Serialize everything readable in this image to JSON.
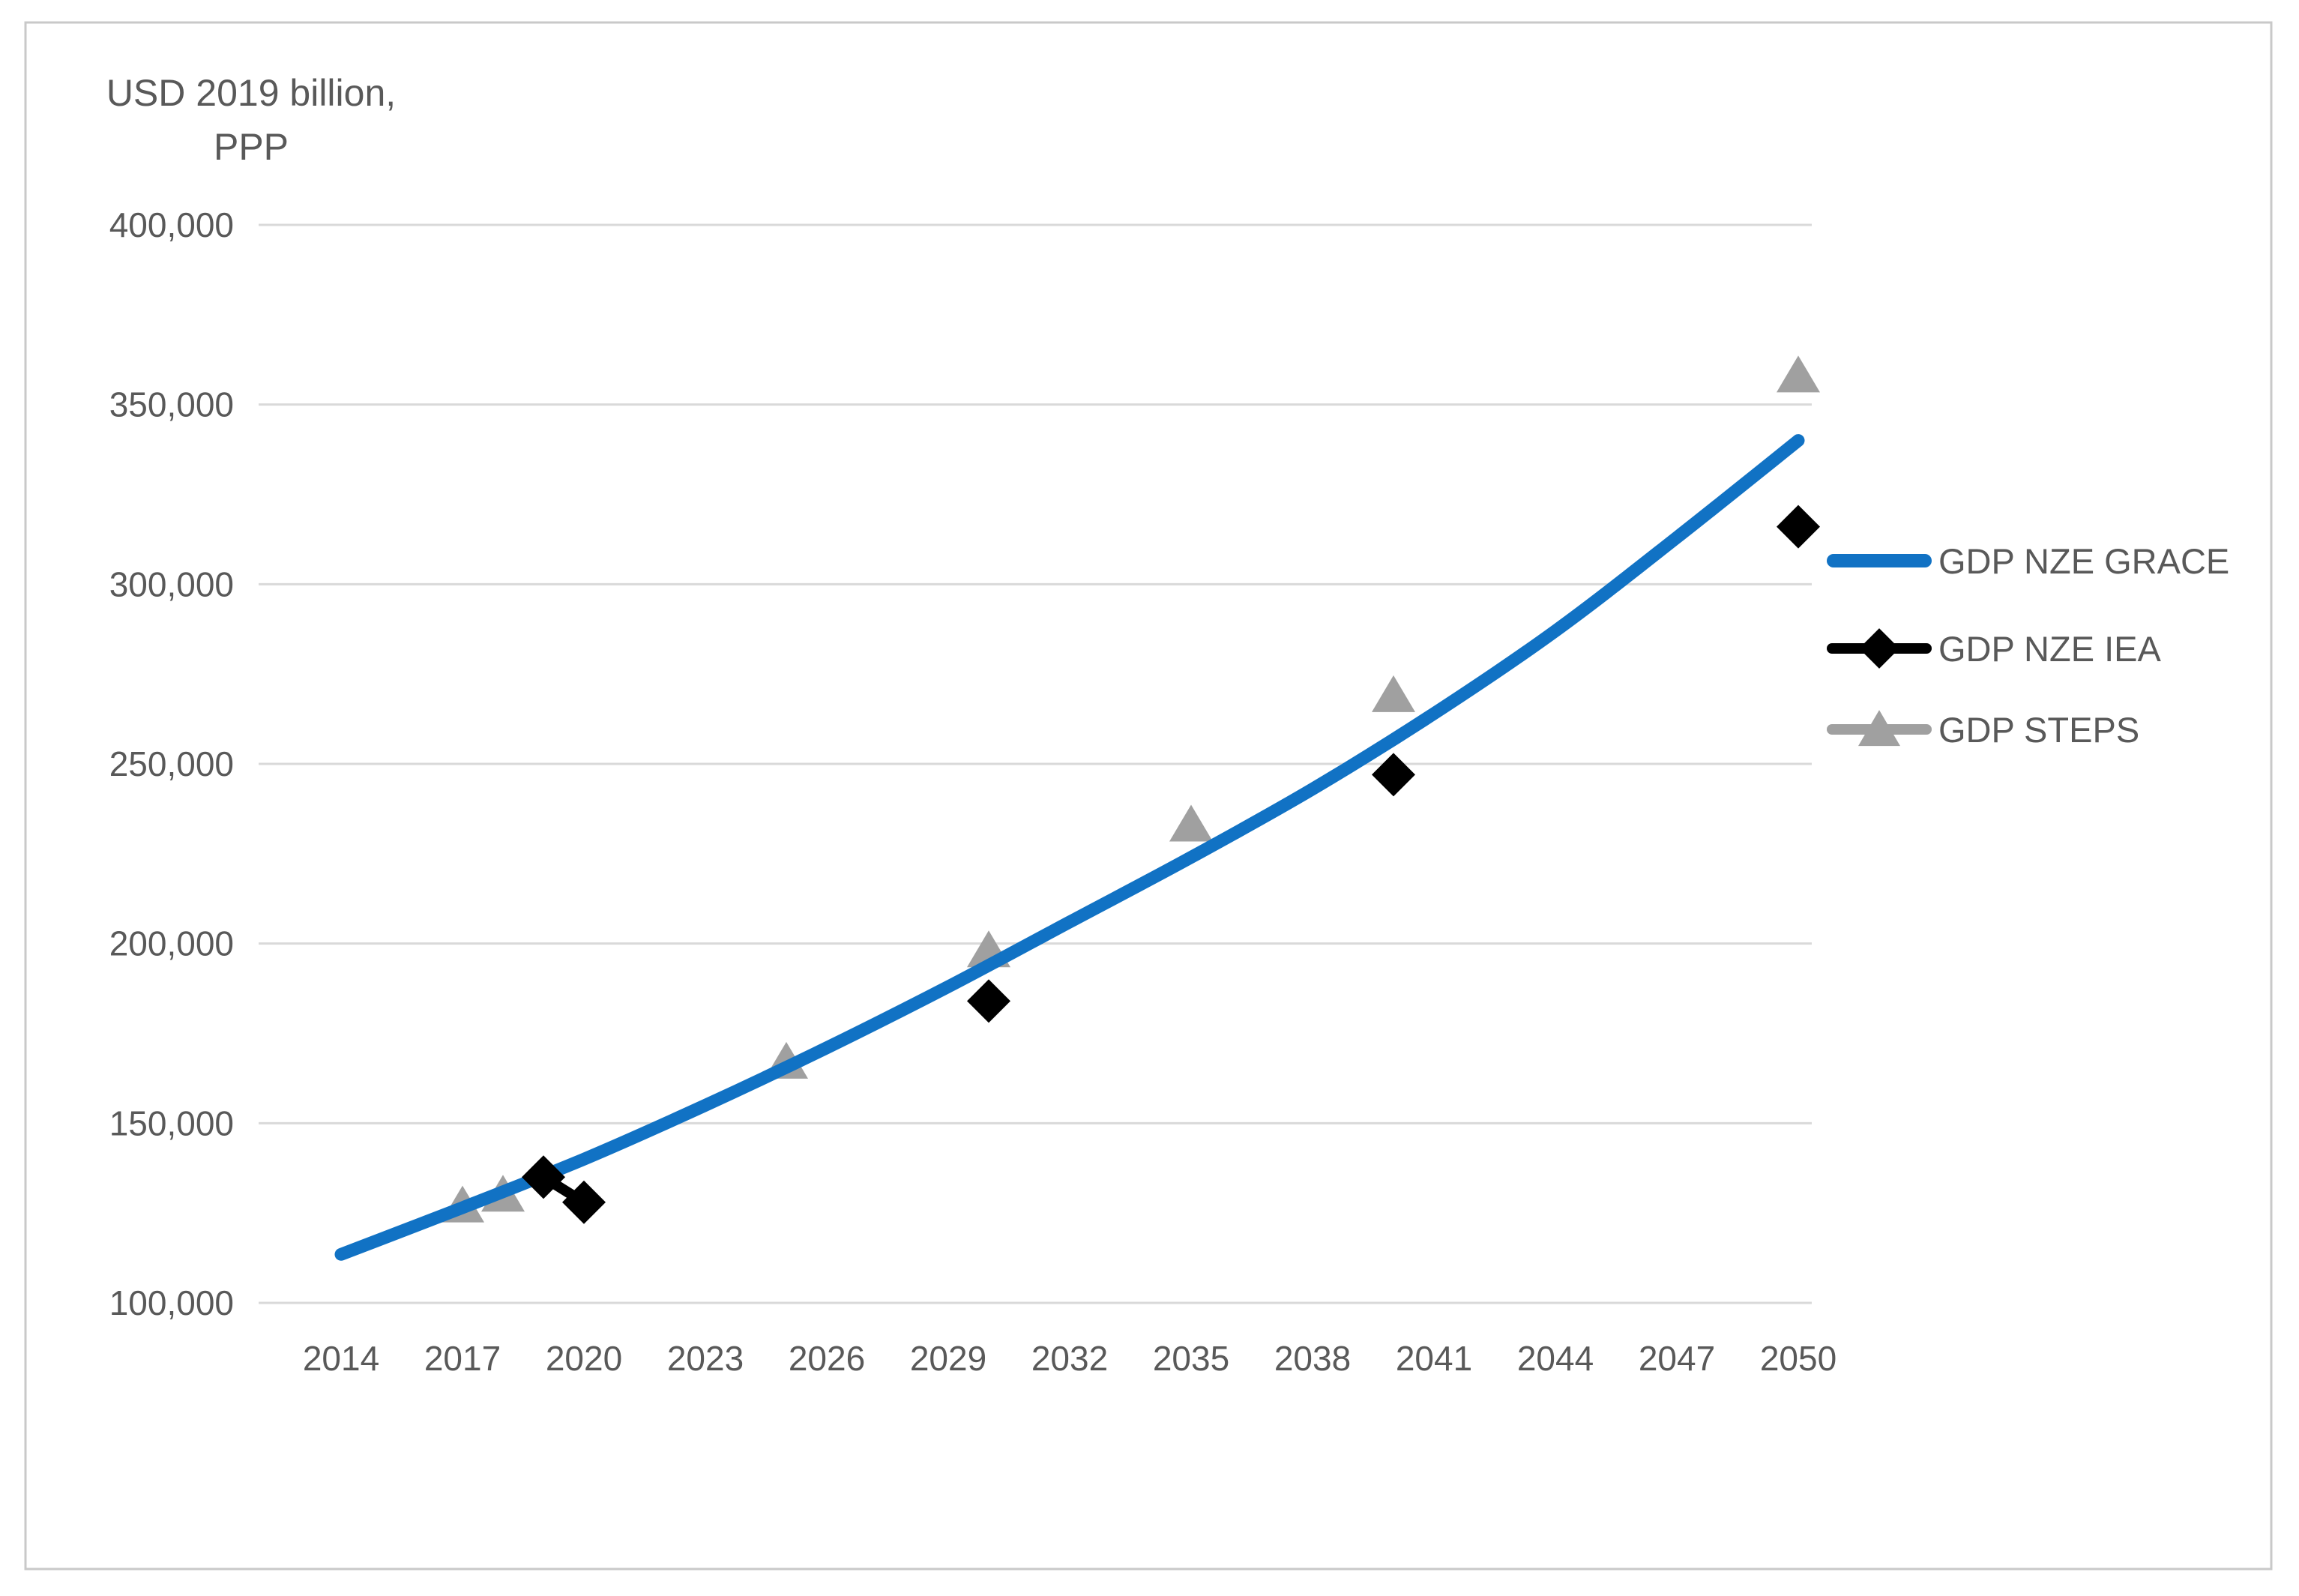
{
  "window": {
    "background": "#ffffff",
    "frame_border_color": "#c9c9c9"
  },
  "chart": {
    "y_axis_title_line1": "USD 2019 billion,",
    "y_axis_title_line2": "PPP"
  },
  "chart_data": {
    "type": "line",
    "title": "",
    "y_axis_title": "USD 2019 billion, PPP",
    "xlabel": "",
    "ylabel": "USD 2019 billion, PPP",
    "xlim": [
      2012,
      2050.4
    ],
    "ylim": [
      100000,
      400000
    ],
    "x_ticks": [
      2014,
      2017,
      2020,
      2023,
      2026,
      2029,
      2032,
      2035,
      2038,
      2041,
      2044,
      2047,
      2050
    ],
    "y_ticks": [
      400000,
      350000,
      300000,
      250000,
      200000,
      150000,
      100000
    ],
    "y_tick_labels": [
      "400,000",
      "350,000",
      "300,000",
      "250,000",
      "200,000",
      "150,000",
      "100,000"
    ],
    "gridlines": "horizontal",
    "grid_color": "#d9d9d9",
    "text_color": "#595959",
    "legend_position": "right",
    "series": [
      {
        "name": "GDP NZE GRACE",
        "kind": "smooth-line",
        "marker": "none",
        "color": "#1172c4",
        "x": [
          2014,
          2017,
          2020,
          2023,
          2026,
          2029,
          2032,
          2035,
          2038,
          2041,
          2044,
          2047,
          2050
        ],
        "values": [
          113500,
          126500,
          140000,
          155000,
          171000,
          188000,
          206000,
          224000,
          243000,
          264000,
          287000,
          313000,
          340000
        ]
      },
      {
        "name": "GDP NZE IEA",
        "kind": "markers",
        "marker": "diamond",
        "color": "#000000",
        "x": [
          2019,
          2020,
          2030,
          2040,
          2050
        ],
        "values": [
          135000,
          128000,
          184000,
          247000,
          316000
        ],
        "connected": [
          [
            2019,
            2020
          ]
        ]
      },
      {
        "name": "GDP STEPS",
        "kind": "markers",
        "marker": "triangle",
        "color": "#a0a0a0",
        "x": [
          2017,
          2018,
          2025,
          2030,
          2035,
          2040,
          2050
        ],
        "values": [
          127000,
          130000,
          167000,
          198000,
          233000,
          269000,
          358000
        ],
        "connected": [
          [
            2017,
            2018
          ]
        ]
      }
    ]
  }
}
